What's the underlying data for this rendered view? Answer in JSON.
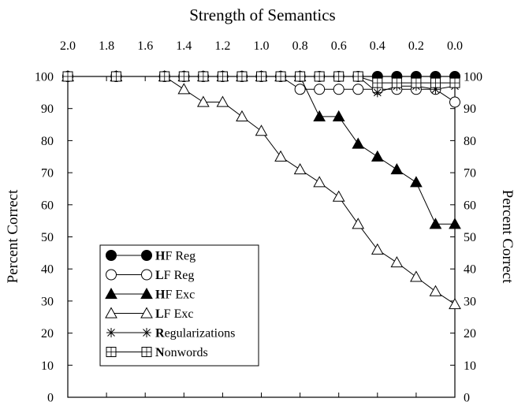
{
  "chart_data": {
    "type": "line",
    "title": "Strength of Semantics",
    "ylabel_left": "Percent Correct",
    "ylabel_right": "Percent Correct",
    "x_reversed": true,
    "xlim": [
      2.0,
      0.0
    ],
    "ylim": [
      0,
      100
    ],
    "x_ticks": [
      2.0,
      1.8,
      1.6,
      1.4,
      1.2,
      1.0,
      0.8,
      0.6,
      0.4,
      0.2,
      0.0
    ],
    "x_tick_labels": [
      "2.0",
      "1.8",
      "1.6",
      "1.4",
      "1.2",
      "1.0",
      "0.8",
      "0.6",
      "0.4",
      "0.2",
      "0.0"
    ],
    "y_ticks": [
      0,
      10,
      20,
      30,
      40,
      50,
      60,
      70,
      80,
      90,
      100
    ],
    "y_tick_labels": [
      "0",
      "10",
      "20",
      "30",
      "40",
      "50",
      "60",
      "70",
      "80",
      "90",
      "100"
    ],
    "grid": false,
    "legend_position": "bottom-left",
    "series": [
      {
        "name": "HF Reg",
        "bold_initial": "H",
        "rest": "F Reg",
        "marker": "filled-circle",
        "x": [
          2.0,
          1.75,
          1.5,
          1.4,
          1.3,
          1.2,
          1.1,
          1.0,
          0.9,
          0.8,
          0.7,
          0.6,
          0.5,
          0.4,
          0.3,
          0.2,
          0.1,
          0.0
        ],
        "y": [
          100,
          100,
          100,
          100,
          100,
          100,
          100,
          100,
          100,
          100,
          100,
          100,
          100,
          100,
          100,
          100,
          100,
          100
        ]
      },
      {
        "name": "LF Reg",
        "bold_initial": "L",
        "rest": "F Reg",
        "marker": "open-circle",
        "x": [
          2.0,
          1.75,
          1.5,
          1.4,
          1.3,
          1.2,
          1.1,
          1.0,
          0.9,
          0.8,
          0.7,
          0.6,
          0.5,
          0.4,
          0.3,
          0.2,
          0.1,
          0.0
        ],
        "y": [
          100,
          100,
          100,
          100,
          100,
          100,
          100,
          100,
          100,
          96,
          96,
          96,
          96,
          96,
          96,
          96,
          96,
          92
        ]
      },
      {
        "name": "HF Exc",
        "bold_initial": "H",
        "rest": "F Exc",
        "marker": "filled-triangle",
        "x": [
          2.0,
          1.75,
          1.5,
          1.4,
          1.3,
          1.2,
          1.1,
          1.0,
          0.9,
          0.8,
          0.7,
          0.6,
          0.5,
          0.4,
          0.3,
          0.2,
          0.1,
          0.0
        ],
        "y": [
          100,
          100,
          100,
          100,
          100,
          100,
          100,
          100,
          100,
          100,
          87.5,
          87.5,
          79,
          75,
          71,
          67,
          54,
          54
        ]
      },
      {
        "name": "LF Exc",
        "bold_initial": "L",
        "rest": "F Exc",
        "marker": "open-triangle",
        "x": [
          2.0,
          1.75,
          1.5,
          1.4,
          1.3,
          1.2,
          1.1,
          1.0,
          0.9,
          0.8,
          0.7,
          0.6,
          0.5,
          0.4,
          0.3,
          0.2,
          0.1,
          0.0
        ],
        "y": [
          100,
          100,
          100,
          96,
          92,
          92,
          87.5,
          83,
          75,
          71,
          67,
          62.5,
          54,
          46,
          42,
          37.5,
          33,
          29
        ]
      },
      {
        "name": "Regularizations",
        "bold_initial": "R",
        "rest": "egularizations",
        "marker": "asterisk",
        "x": [
          2.0,
          1.75,
          1.5,
          1.4,
          1.3,
          1.2,
          1.1,
          1.0,
          0.9,
          0.8,
          0.7,
          0.6,
          0.5,
          0.4,
          0.3,
          0.2,
          0.1,
          0.0
        ],
        "y": [
          100,
          100,
          100,
          100,
          100,
          100,
          100,
          100,
          100,
          100,
          100,
          100,
          100,
          95,
          97,
          97,
          96,
          97
        ]
      },
      {
        "name": "Nonwords",
        "bold_initial": "N",
        "rest": "onwords",
        "marker": "open-square-cross",
        "x": [
          2.0,
          1.75,
          1.5,
          1.4,
          1.3,
          1.2,
          1.1,
          1.0,
          0.9,
          0.8,
          0.7,
          0.6,
          0.5,
          0.4,
          0.3,
          0.2,
          0.1,
          0.0
        ],
        "y": [
          100,
          100,
          100,
          100,
          100,
          100,
          100,
          100,
          100,
          100,
          100,
          100,
          100,
          98,
          98,
          98,
          98,
          98
        ]
      }
    ]
  }
}
